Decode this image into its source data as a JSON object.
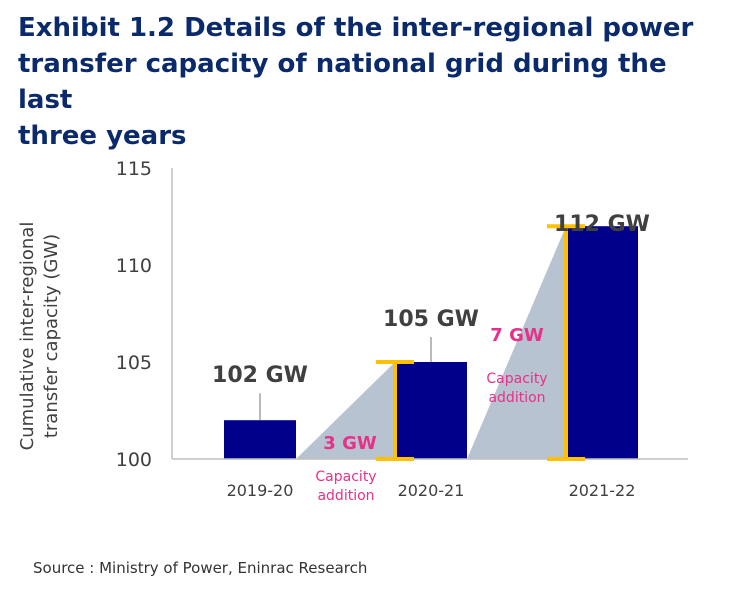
{
  "title": "Exhibit 1.2  Details of the inter-regional power\ntransfer capacity of national grid during the last\nthree years",
  "source": "Source : Ministry of Power, Eninrac Research",
  "colors": {
    "bar": "#00008b",
    "axis": "#bfbfbf",
    "bracket": "#ffc000",
    "triangle": "#b8c3d1",
    "annotation": "#e6318a",
    "value_label": "#404040",
    "tick": "#404040"
  },
  "chart_data": {
    "type": "bar",
    "ylabel_lines": [
      "Cumulative inter-regional",
      "transfer capacity  (GW)"
    ],
    "ylim": [
      100,
      115
    ],
    "yticks": [
      100,
      105,
      110,
      115
    ],
    "categories": [
      "2019-20",
      "2020-21",
      "2021-22"
    ],
    "values": [
      102,
      105,
      112
    ],
    "value_labels": [
      "102 GW",
      "105 GW",
      "112 GW"
    ],
    "additions": [
      {
        "from": 100,
        "to": 105,
        "category": "2020-21",
        "value_label": "3 GW",
        "text_lines": [
          "Capacity",
          "addition"
        ]
      },
      {
        "from": 100,
        "to": 112,
        "category": "2021-22",
        "value_label": "7 GW",
        "text_lines": [
          "Capacity",
          "addition"
        ]
      }
    ],
    "grid": false
  }
}
